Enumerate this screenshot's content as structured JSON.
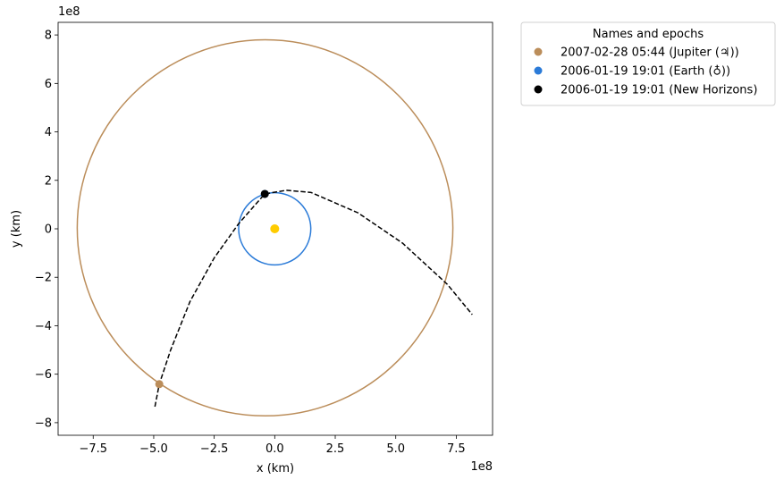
{
  "chart_data": {
    "type": "orbit",
    "xlabel": "x (km)",
    "ylabel": "y (km)",
    "x_offset_label": "1e8",
    "y_offset_label": "1e8",
    "xlim": [
      -895000000,
      900000000
    ],
    "ylim": [
      -852000000,
      852000000
    ],
    "xticks": [
      {
        "value": -750000000,
        "label": "−7.5"
      },
      {
        "value": -500000000,
        "label": "−5.0"
      },
      {
        "value": -250000000,
        "label": "−2.5"
      },
      {
        "value": 0,
        "label": "0.0"
      },
      {
        "value": 250000000,
        "label": "2.5"
      },
      {
        "value": 500000000,
        "label": "5.0"
      },
      {
        "value": 750000000,
        "label": "7.5"
      }
    ],
    "yticks": [
      {
        "value": -800000000,
        "label": "−8"
      },
      {
        "value": -600000000,
        "label": "−6"
      },
      {
        "value": -400000000,
        "label": "−4"
      },
      {
        "value": -200000000,
        "label": "−2"
      },
      {
        "value": 0,
        "label": "0"
      },
      {
        "value": 200000000,
        "label": "2"
      },
      {
        "value": 400000000,
        "label": "4"
      },
      {
        "value": 600000000,
        "label": "6"
      },
      {
        "value": 800000000,
        "label": "8"
      }
    ],
    "legend_title": "Names and epochs",
    "legend_loc": "outside upper right",
    "attractor": {
      "color": "#ffcc00",
      "x": 0,
      "y": 0
    },
    "series": [
      {
        "name": "2007-02-28 05:44 (Jupiter (♃))",
        "color": "#bb8d5a",
        "x": [
          -477000000
        ],
        "y": [
          -641000000
        ],
        "orbit": {
          "center": [
            -40000000,
            4000000
          ],
          "radius": 776000000
        }
      },
      {
        "name": "2006-01-19 19:01 (Earth (♁))",
        "color": "#2b7bd8",
        "x": [
          -41000000
        ],
        "y": [
          144000000
        ],
        "orbit": {
          "center": [
            0,
            0
          ],
          "radius": 149000000
        }
      },
      {
        "name": "2006-01-19 19:01 (New Horizons)",
        "color": "#000000",
        "x": [
          -41000000
        ],
        "y": [
          144000000
        ],
        "trajectory": {
          "x": [
            -495000000,
            -477000000,
            -430000000,
            -350000000,
            -250000000,
            -150000000,
            -80000000,
            -41000000,
            48000000,
            150000000,
            344000000,
            528000000,
            713000000,
            816000000
          ],
          "y": [
            -734000000,
            -641000000,
            -500000000,
            -300000000,
            -120000000,
            20000000,
            100000000,
            144000000,
            159000000,
            150000000,
            66000000,
            -59000000,
            -229000000,
            -354000000
          ]
        }
      }
    ]
  }
}
